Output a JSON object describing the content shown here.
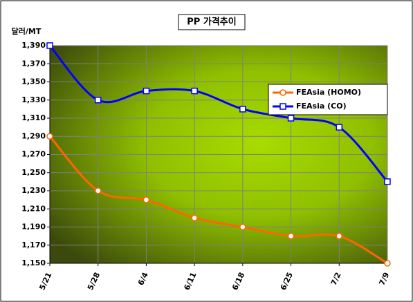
{
  "chart_data": {
    "type": "line",
    "title": "PP 가격추이",
    "y_label": "달러/MT",
    "categories": [
      "5/21",
      "5/28",
      "6/4",
      "6/11",
      "6/18",
      "6/25",
      "7/2",
      "7/9"
    ],
    "series": [
      {
        "name": "FEAsia (HOMO)",
        "color": "#ff6600",
        "marker": "circle",
        "values": [
          1290,
          1230,
          1220,
          1200,
          1190,
          1180,
          1180,
          1150
        ]
      },
      {
        "name": "FEAsia (CO)",
        "color": "#0000ff",
        "marker": "square",
        "values": [
          1390,
          1330,
          1340,
          1340,
          1320,
          1310,
          1300,
          1240
        ]
      }
    ],
    "ylim": [
      1150,
      1390
    ],
    "yticks": [
      {
        "value": 1150,
        "label": "1,150"
      },
      {
        "value": 1170,
        "label": "1,170"
      },
      {
        "value": 1190,
        "label": "1,190"
      },
      {
        "value": 1210,
        "label": "1,210"
      },
      {
        "value": 1230,
        "label": "1,230"
      },
      {
        "value": 1250,
        "label": "1,250"
      },
      {
        "value": 1270,
        "label": "1,270"
      },
      {
        "value": 1290,
        "label": "1,290"
      },
      {
        "value": 1310,
        "label": "1,310"
      },
      {
        "value": 1330,
        "label": "1,330"
      },
      {
        "value": 1350,
        "label": "1,350"
      },
      {
        "value": 1370,
        "label": "1,370"
      },
      {
        "value": 1390,
        "label": "1,390"
      }
    ],
    "grid": true,
    "legend": "upper right"
  }
}
